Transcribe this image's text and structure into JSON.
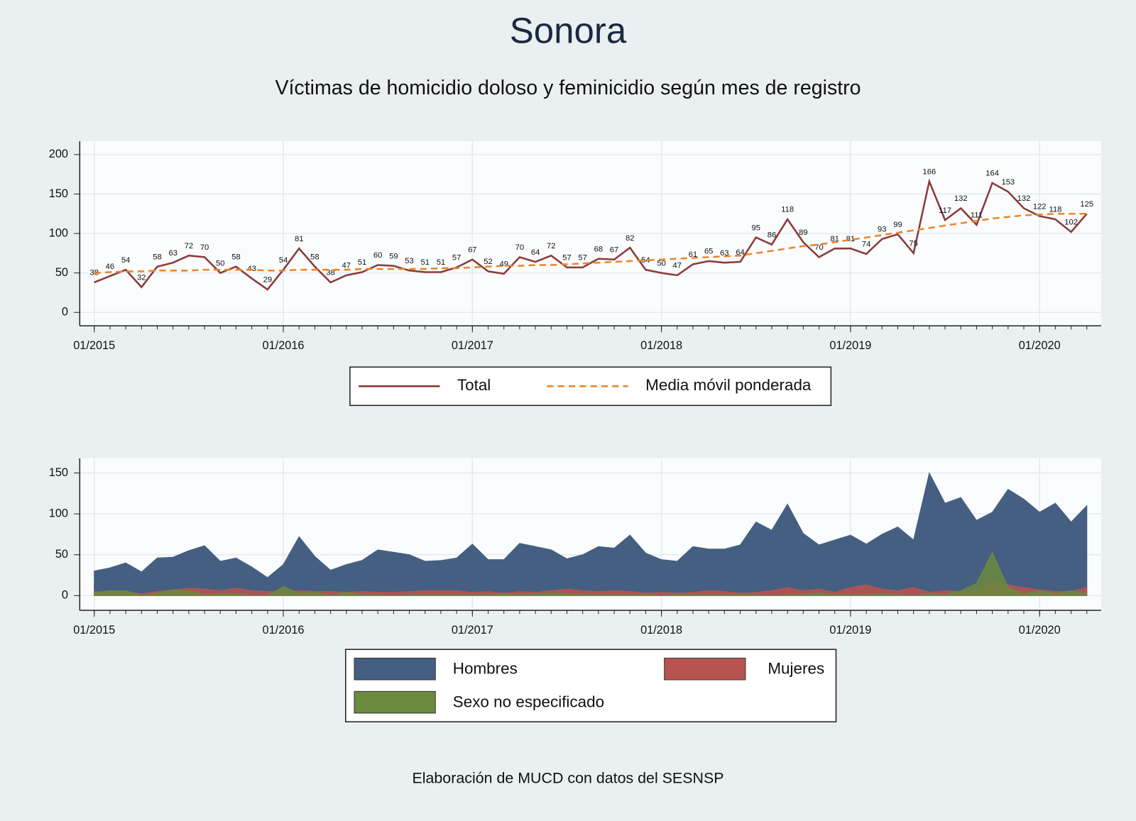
{
  "title": "Sonora",
  "subtitle": "Víctimas de homicidio doloso y feminicidio según mes de registro",
  "source": "Elaboración de MUCD con datos del SESNSP",
  "chart_data": [
    {
      "type": "line",
      "legend": "bottom",
      "grid": true,
      "categories": [
        "01/2015",
        null,
        null,
        null,
        null,
        null,
        null,
        null,
        null,
        null,
        null,
        null,
        "01/2016",
        null,
        null,
        null,
        null,
        null,
        null,
        null,
        null,
        null,
        null,
        null,
        "01/2017",
        null,
        null,
        null,
        null,
        null,
        null,
        null,
        null,
        null,
        null,
        null,
        "01/2018",
        null,
        null,
        null,
        null,
        null,
        null,
        null,
        null,
        null,
        null,
        null,
        "01/2019",
        null,
        null,
        null,
        null,
        null,
        null,
        null,
        null,
        null,
        null,
        null,
        "01/2020",
        null,
        null,
        null
      ],
      "ylim": [
        -17,
        217
      ],
      "yticks": [
        0,
        50,
        100,
        150,
        200
      ],
      "series": [
        {
          "name": "Total",
          "color": "#8b3a3a",
          "style": "solid",
          "labels": true,
          "values": [
            38,
            46,
            54,
            32,
            58,
            63,
            72,
            70,
            50,
            58,
            43,
            29,
            54,
            81,
            58,
            38,
            47,
            51,
            60,
            59,
            53,
            51,
            51,
            57,
            67,
            52,
            49,
            70,
            64,
            72,
            57,
            57,
            68,
            67,
            82,
            54,
            50,
            47,
            61,
            65,
            63,
            64,
            95,
            86,
            118,
            89,
            70,
            81,
            81,
            74,
            93,
            99,
            75,
            166,
            117,
            132,
            111,
            164,
            153,
            132,
            122,
            118,
            102,
            125
          ]
        },
        {
          "name": "Media móvil ponderada",
          "color": "#e8872a",
          "style": "dashed",
          "labels": false,
          "values": [
            50,
            51,
            52,
            52,
            53,
            53,
            53,
            54,
            54,
            54,
            54,
            53,
            53,
            54,
            54,
            54,
            54,
            55,
            55,
            55,
            55,
            55,
            56,
            56,
            57,
            58,
            59,
            59,
            60,
            60,
            61,
            62,
            63,
            64,
            65,
            66,
            67,
            68,
            69,
            70,
            71,
            72,
            75,
            78,
            81,
            84,
            86,
            89,
            92,
            95,
            98,
            101,
            104,
            107,
            110,
            113,
            116,
            119,
            121,
            123,
            124,
            125,
            125,
            125
          ]
        }
      ]
    },
    {
      "type": "area",
      "legend": "bottom",
      "grid": true,
      "categories": [
        "01/2015",
        null,
        null,
        null,
        null,
        null,
        null,
        null,
        null,
        null,
        null,
        null,
        "01/2016",
        null,
        null,
        null,
        null,
        null,
        null,
        null,
        null,
        null,
        null,
        null,
        "01/2017",
        null,
        null,
        null,
        null,
        null,
        null,
        null,
        null,
        null,
        null,
        null,
        "01/2018",
        null,
        null,
        null,
        null,
        null,
        null,
        null,
        null,
        null,
        null,
        null,
        "01/2019",
        null,
        null,
        null,
        null,
        null,
        null,
        null,
        null,
        null,
        null,
        null,
        "01/2020",
        null,
        null,
        null
      ],
      "ylim": [
        -18,
        168
      ],
      "yticks": [
        0,
        50,
        100,
        150
      ],
      "series": [
        {
          "name": "Hombres",
          "color": "#445f82",
          "values": [
            30,
            34,
            40,
            29,
            46,
            47,
            55,
            61,
            42,
            46,
            35,
            22,
            38,
            72,
            48,
            31,
            38,
            43,
            56,
            53,
            50,
            42,
            43,
            46,
            63,
            44,
            44,
            64,
            60,
            56,
            45,
            50,
            60,
            58,
            74,
            52,
            44,
            42,
            60,
            57,
            57,
            62,
            90,
            80,
            112,
            76,
            62,
            68,
            74,
            63,
            75,
            84,
            68,
            150,
            113,
            120,
            92,
            102,
            130,
            118,
            102,
            113,
            90,
            110
          ]
        },
        {
          "name": "Mujeres",
          "color": "#b85450",
          "values": [
            5,
            4,
            5,
            2,
            5,
            7,
            9,
            8,
            6,
            9,
            6,
            5,
            5,
            6,
            5,
            5,
            4,
            5,
            4,
            4,
            5,
            6,
            6,
            6,
            4,
            5,
            3,
            5,
            4,
            6,
            8,
            6,
            5,
            6,
            5,
            3,
            4,
            3,
            4,
            6,
            5,
            3,
            4,
            6,
            10,
            6,
            8,
            4,
            10,
            13,
            8,
            6,
            10,
            4,
            6,
            5,
            5,
            16,
            13,
            10,
            7,
            5,
            5,
            10
          ]
        },
        {
          "name": "Sexo no especificado",
          "color": "#6b8a3e",
          "values": [
            4,
            6,
            6,
            0,
            3,
            7,
            6,
            1,
            2,
            2,
            0,
            0,
            11,
            3,
            4,
            0,
            4,
            1,
            1,
            0,
            1,
            1,
            1,
            1,
            1,
            1,
            2,
            1,
            2,
            3,
            2,
            1,
            1,
            1,
            1,
            1,
            0,
            1,
            1,
            1,
            1,
            1,
            1,
            0,
            1,
            1,
            3,
            1,
            1,
            1,
            2,
            1,
            0,
            2,
            1,
            6,
            15,
            53,
            10,
            2,
            6,
            2,
            6,
            2
          ]
        }
      ]
    }
  ]
}
